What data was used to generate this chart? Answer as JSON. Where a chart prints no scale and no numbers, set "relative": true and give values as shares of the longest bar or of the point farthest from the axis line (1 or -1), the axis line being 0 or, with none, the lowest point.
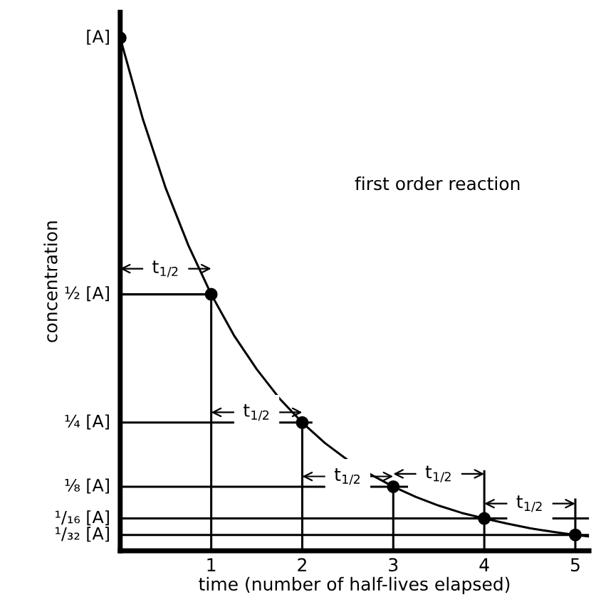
{
  "chart_data": {
    "type": "line",
    "relative": true,
    "tick_labels": "x",
    "xlabel": "time (number of half-lives elapsed)",
    "ylabel": "concentration",
    "xlim": [
      0,
      5.15
    ],
    "xticks": [
      1,
      2,
      3,
      4,
      5
    ],
    "grid": false,
    "annotations": [
      "first order reaction",
      {
        "text": "t$_{1/2}$",
        "x": 0.5,
        "y": 0.55
      },
      {
        "text": "t$_{1/2}$",
        "x": 1.5,
        "y": 0.27
      },
      {
        "text": "t$_{1/2}$",
        "x": 2.5,
        "y": 0.145
      },
      {
        "text": "t$_{1/2}$",
        "x": 3.5,
        "y": 0.15
      },
      {
        "text": "t$_{1/2}$",
        "x": 4.5,
        "y": 0.092
      },
      {
        "text": "[A]",
        "x": 0,
        "y": 1
      },
      {
        "text": "½ [A]",
        "x": 0,
        "y": 0.5
      },
      {
        "text": "¼ [A]",
        "x": 0,
        "y": 0.25
      },
      {
        "text": "⅛ [A]",
        "x": 0,
        "y": 0.125
      },
      {
        "text": "¹/₁₆ [A]",
        "x": 0,
        "y": 0.063
      },
      {
        "text": "¹/₃₂ [A]",
        "x": 0,
        "y": 0.031
      }
    ],
    "series": [
      {
        "color": "#000000",
        "x": [
          0,
          0.25,
          0.5,
          0.75,
          1,
          1.25,
          1.5,
          1.75,
          2,
          2.25,
          2.5,
          2.75,
          3,
          3.25,
          3.5,
          3.75,
          4,
          4.25,
          4.5,
          4.75,
          5,
          5.15
        ],
        "values": [
          1,
          0.841,
          0.707,
          0.595,
          0.5,
          0.42,
          0.354,
          0.297,
          0.25,
          0.21,
          0.177,
          0.149,
          0.125,
          0.105,
          0.088,
          0.074,
          0.063,
          0.053,
          0.044,
          0.037,
          0.031,
          0.028
        ]
      },
      {
        "type": "scatter",
        "color": "#000000",
        "marker": "circle",
        "x": [
          0,
          1,
          2,
          3,
          4,
          5
        ],
        "values": [
          1,
          0.5,
          0.25,
          0.125,
          0.063,
          0.031
        ]
      },
      {
        "color": "#000000",
        "x": [
          0,
          1
        ],
        "values": [
          0.5,
          0.5
        ]
      },
      {
        "color": "#000000",
        "x": [
          0,
          2.1
        ],
        "values": [
          0.25,
          0.25
        ]
      },
      {
        "color": "#000000",
        "x": [
          0,
          3.15
        ],
        "values": [
          0.125,
          0.125
        ]
      },
      {
        "color": "#000000",
        "x": [
          0,
          5.15
        ],
        "values": [
          0.063,
          0.063
        ]
      },
      {
        "color": "#000000",
        "x": [
          0,
          5.15
        ],
        "values": [
          0.031,
          0.031
        ]
      },
      {
        "color": "#000000",
        "x": [
          1,
          1
        ],
        "values": [
          0.5,
          0
        ]
      },
      {
        "color": "#000000",
        "x": [
          2,
          2
        ],
        "values": [
          0.25,
          0
        ]
      },
      {
        "color": "#000000",
        "x": [
          3,
          3
        ],
        "values": [
          0.125,
          0
        ]
      },
      {
        "color": "#000000",
        "x": [
          4,
          4
        ],
        "values": [
          0.155,
          0
        ]
      },
      {
        "color": "#000000",
        "x": [
          5,
          5
        ],
        "values": [
          0.1,
          0
        ]
      }
    ]
  }
}
